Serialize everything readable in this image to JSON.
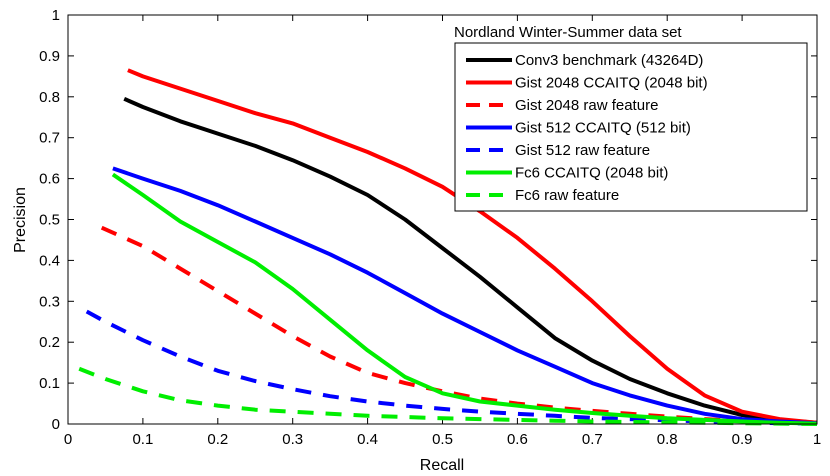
{
  "chart_data": {
    "type": "line",
    "title": "Nordland Winter-Summer data set",
    "xlabel": "Recall",
    "ylabel": "Precision",
    "xlim": [
      0,
      1
    ],
    "ylim": [
      0,
      1
    ],
    "xticks": [
      0,
      0.1,
      0.2,
      0.3,
      0.4,
      0.5,
      0.6,
      0.7,
      0.8,
      0.9,
      1
    ],
    "yticks": [
      0,
      0.1,
      0.2,
      0.3,
      0.4,
      0.5,
      0.6,
      0.7,
      0.8,
      0.9,
      1
    ],
    "xtick_labels": [
      "0",
      "0.1",
      "0.2",
      "0.3",
      "0.4",
      "0.5",
      "0.6",
      "0.7",
      "0.8",
      "0.9",
      "1"
    ],
    "ytick_labels": [
      "0",
      "0.1",
      "0.2",
      "0.3",
      "0.4",
      "0.5",
      "0.6",
      "0.7",
      "0.8",
      "0.9",
      "1"
    ],
    "legend_position": "top-right",
    "series": [
      {
        "name": "Conv3 benchmark (43264D)",
        "color": "#000000",
        "style": "solid",
        "x": [
          0.075,
          0.1,
          0.15,
          0.2,
          0.25,
          0.3,
          0.35,
          0.4,
          0.45,
          0.5,
          0.55,
          0.6,
          0.65,
          0.7,
          0.75,
          0.8,
          0.85,
          0.9,
          0.95,
          1.0
        ],
        "y": [
          0.795,
          0.775,
          0.74,
          0.71,
          0.68,
          0.645,
          0.605,
          0.56,
          0.5,
          0.43,
          0.36,
          0.285,
          0.21,
          0.155,
          0.11,
          0.075,
          0.045,
          0.022,
          0.01,
          0.003
        ]
      },
      {
        "name": "Gist 2048 CCAITQ (2048 bit)",
        "color": "#ff0000",
        "style": "solid",
        "x": [
          0.08,
          0.1,
          0.15,
          0.2,
          0.25,
          0.3,
          0.35,
          0.4,
          0.45,
          0.5,
          0.55,
          0.6,
          0.65,
          0.7,
          0.75,
          0.8,
          0.85,
          0.9,
          0.95,
          1.0
        ],
        "y": [
          0.865,
          0.85,
          0.82,
          0.79,
          0.76,
          0.735,
          0.7,
          0.665,
          0.625,
          0.58,
          0.52,
          0.455,
          0.38,
          0.3,
          0.215,
          0.135,
          0.07,
          0.03,
          0.012,
          0.003
        ]
      },
      {
        "name": "Gist 2048 raw feature",
        "color": "#ff0000",
        "style": "dashed",
        "x": [
          0.045,
          0.1,
          0.15,
          0.2,
          0.25,
          0.3,
          0.35,
          0.4,
          0.45,
          0.5,
          0.55,
          0.6,
          0.65,
          0.7,
          0.75,
          0.8,
          0.85,
          0.9,
          0.95,
          1.0
        ],
        "y": [
          0.48,
          0.435,
          0.38,
          0.325,
          0.27,
          0.215,
          0.165,
          0.125,
          0.1,
          0.08,
          0.062,
          0.05,
          0.04,
          0.032,
          0.025,
          0.018,
          0.012,
          0.007,
          0.004,
          0.002
        ]
      },
      {
        "name": "Gist 512 CCAITQ (512 bit)",
        "color": "#0000ff",
        "style": "solid",
        "x": [
          0.06,
          0.1,
          0.15,
          0.2,
          0.25,
          0.3,
          0.35,
          0.4,
          0.45,
          0.5,
          0.55,
          0.6,
          0.65,
          0.7,
          0.75,
          0.8,
          0.85,
          0.9,
          0.95,
          1.0
        ],
        "y": [
          0.625,
          0.6,
          0.57,
          0.535,
          0.495,
          0.455,
          0.415,
          0.37,
          0.32,
          0.27,
          0.225,
          0.18,
          0.14,
          0.1,
          0.07,
          0.045,
          0.025,
          0.012,
          0.006,
          0.002
        ]
      },
      {
        "name": "Gist 512 raw feature",
        "color": "#0000ff",
        "style": "dashed",
        "x": [
          0.025,
          0.05,
          0.1,
          0.15,
          0.2,
          0.25,
          0.3,
          0.35,
          0.4,
          0.45,
          0.5,
          0.55,
          0.6,
          0.65,
          0.7,
          0.75,
          0.8,
          0.85,
          0.9,
          0.95,
          1.0
        ],
        "y": [
          0.275,
          0.25,
          0.205,
          0.165,
          0.13,
          0.105,
          0.085,
          0.068,
          0.055,
          0.045,
          0.037,
          0.03,
          0.025,
          0.02,
          0.015,
          0.012,
          0.009,
          0.006,
          0.004,
          0.002,
          0.001
        ]
      },
      {
        "name": "Fc6 CCAITQ (2048 bit)",
        "color": "#00ee00",
        "style": "solid",
        "x": [
          0.06,
          0.1,
          0.15,
          0.2,
          0.25,
          0.3,
          0.35,
          0.4,
          0.45,
          0.5,
          0.55,
          0.6,
          0.65,
          0.7,
          0.75,
          0.8,
          0.85,
          0.9,
          0.95,
          1.0
        ],
        "y": [
          0.61,
          0.56,
          0.495,
          0.445,
          0.395,
          0.33,
          0.255,
          0.18,
          0.115,
          0.075,
          0.055,
          0.045,
          0.035,
          0.027,
          0.02,
          0.014,
          0.01,
          0.006,
          0.003,
          0.001
        ]
      },
      {
        "name": "Fc6 raw feature",
        "color": "#00ee00",
        "style": "dashed",
        "x": [
          0.015,
          0.05,
          0.1,
          0.15,
          0.2,
          0.25,
          0.3,
          0.35,
          0.4,
          0.45,
          0.5,
          0.55,
          0.6,
          0.65,
          0.7,
          0.75,
          0.8,
          0.85,
          0.9,
          0.95,
          1.0
        ],
        "y": [
          0.135,
          0.11,
          0.08,
          0.058,
          0.045,
          0.035,
          0.03,
          0.025,
          0.02,
          0.017,
          0.014,
          0.012,
          0.01,
          0.008,
          0.006,
          0.005,
          0.004,
          0.003,
          0.002,
          0.001,
          0.0
        ]
      }
    ]
  }
}
